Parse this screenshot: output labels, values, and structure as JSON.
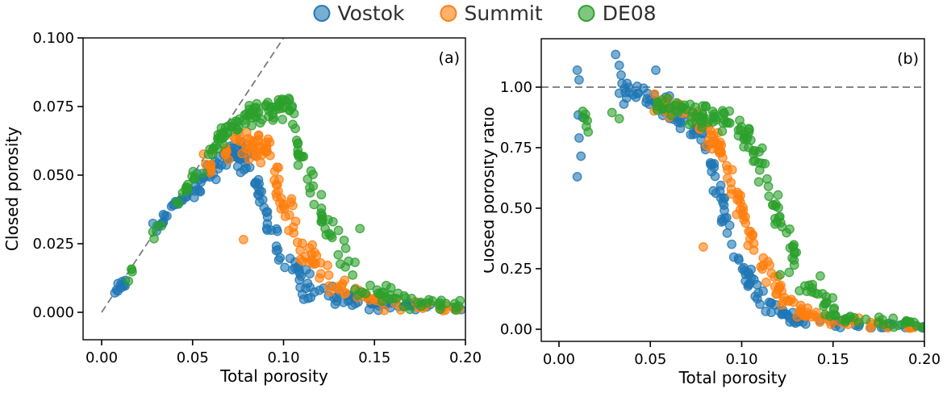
{
  "legend": {
    "items": [
      {
        "label": "Vostok",
        "color": "#1f77b4"
      },
      {
        "label": "Summit",
        "color": "#ff7f0e"
      },
      {
        "label": "DE08",
        "color": "#2ca02c"
      }
    ]
  },
  "chart_data": {
    "type": "scatter",
    "seed": 42,
    "marker": {
      "radius": 5.2,
      "fill_opacity": 0.6,
      "edge_opacity": 0.85,
      "edge_width": 1.3
    },
    "panels": [
      {
        "id": "a",
        "panel_label": "(a)",
        "xlabel": "Total porosity",
        "ylabel": "Closed porosity",
        "xlim": [
          -0.0102,
          0.2
        ],
        "ylim": [
          -0.01,
          0.1
        ],
        "y_floor": 0.0006,
        "xticks": [
          {
            "v": 0,
            "label": "0.00"
          },
          {
            "v": 0.05,
            "label": "0.05"
          },
          {
            "v": 0.1,
            "label": "0.10"
          },
          {
            "v": 0.15,
            "label": "0.15"
          },
          {
            "v": 0.2,
            "label": "0.20"
          }
        ],
        "yticks": [
          {
            "v": 0,
            "label": "0.000"
          },
          {
            "v": 0.025,
            "label": "0.025"
          },
          {
            "v": 0.05,
            "label": "0.050"
          },
          {
            "v": 0.075,
            "label": "0.075"
          },
          {
            "v": 0.1,
            "label": "0.100"
          }
        ],
        "ref_line": {
          "type": "identity",
          "x1": 0,
          "y1": 0,
          "x2": 0.105,
          "y2": 0.105,
          "color": "#757575",
          "dash": "9 5"
        },
        "series": [
          {
            "name": "Vostok",
            "color": "#1f77b4",
            "segments": [
              {
                "n": 10,
                "x": [
                  0.007,
                  0.014
                ],
                "y": [
                  0.0075,
                  0.012
                ],
                "j": 0.0012
              },
              {
                "n": 22,
                "x": [
                  0.028,
                  0.048
                ],
                "y": [
                  0.03,
                  0.044
                ],
                "j": 0.0018
              },
              {
                "n": 28,
                "x": [
                  0.048,
                  0.068
                ],
                "y": [
                  0.044,
                  0.056
                ],
                "j": 0.0022
              },
              {
                "n": 38,
                "x": [
                  0.068,
                  0.084
                ],
                "y": [
                  0.057,
                  0.056
                ],
                "j": 0.0028
              },
              {
                "n": 26,
                "x": [
                  0.084,
                  0.098
                ],
                "y": [
                  0.048,
                  0.022
                ],
                "j": 0.004
              },
              {
                "n": 22,
                "x": [
                  0.098,
                  0.115
                ],
                "y": [
                  0.02,
                  0.0085
                ],
                "j": 0.0028
              },
              {
                "n": 26,
                "x": [
                  0.115,
                  0.15
                ],
                "y": [
                  0.008,
                  0.003
                ],
                "j": 0.0018
              },
              {
                "n": 24,
                "x": [
                  0.15,
                  0.2
                ],
                "y": [
                  0.0028,
                  0.0012
                ],
                "j": 0.001
              }
            ],
            "points": [
              [
                0.009,
                0.0105
              ]
            ]
          },
          {
            "name": "Summit",
            "color": "#ff7f0e",
            "segments": [
              {
                "n": 16,
                "x": [
                  0.056,
                  0.074
                ],
                "y": [
                  0.052,
                  0.061
                ],
                "j": 0.0028
              },
              {
                "n": 36,
                "x": [
                  0.074,
                  0.093
                ],
                "y": [
                  0.062,
                  0.059
                ],
                "j": 0.003
              },
              {
                "n": 26,
                "x": [
                  0.093,
                  0.108
                ],
                "y": [
                  0.05,
                  0.028
                ],
                "j": 0.0045
              },
              {
                "n": 22,
                "x": [
                  0.108,
                  0.126
                ],
                "y": [
                  0.026,
                  0.011
                ],
                "j": 0.0032
              },
              {
                "n": 22,
                "x": [
                  0.126,
                  0.158
                ],
                "y": [
                  0.01,
                  0.0035
                ],
                "j": 0.0018
              },
              {
                "n": 18,
                "x": [
                  0.158,
                  0.198
                ],
                "y": [
                  0.0032,
                  0.0015
                ],
                "j": 0.001
              }
            ],
            "points": [
              [
                0.078,
                0.0265
              ]
            ]
          },
          {
            "name": "DE08",
            "color": "#2ca02c",
            "segments": [
              {
                "n": 4,
                "x": [
                  0.012,
                  0.018
                ],
                "y": [
                  0.012,
                  0.016
                ],
                "j": 0.0012
              },
              {
                "n": 3,
                "x": [
                  0.026,
                  0.031
                ],
                "y": [
                  0.026,
                  0.03
                ],
                "j": 0.0012
              },
              {
                "n": 22,
                "x": [
                  0.04,
                  0.064
                ],
                "y": [
                  0.0395,
                  0.0625
                ],
                "j": 0.0018
              },
              {
                "n": 28,
                "x": [
                  0.064,
                  0.08
                ],
                "y": [
                  0.063,
                  0.0715
                ],
                "j": 0.0022
              },
              {
                "n": 48,
                "x": [
                  0.08,
                  0.106
                ],
                "y": [
                  0.0725,
                  0.0745
                ],
                "j": 0.0032
              },
              {
                "n": 24,
                "x": [
                  0.106,
                  0.121
                ],
                "y": [
                  0.064,
                  0.038
                ],
                "j": 0.005
              },
              {
                "n": 22,
                "x": [
                  0.121,
                  0.14
                ],
                "y": [
                  0.034,
                  0.012
                ],
                "j": 0.004
              },
              {
                "n": 22,
                "x": [
                  0.14,
                  0.17
                ],
                "y": [
                  0.01,
                  0.0042
                ],
                "j": 0.002
              },
              {
                "n": 18,
                "x": [
                  0.17,
                  0.198
                ],
                "y": [
                  0.004,
                  0.002
                ],
                "j": 0.0011
              }
            ],
            "points": [
              [
                0.142,
                0.0305
              ],
              [
                0.033,
                0.0315
              ]
            ]
          }
        ]
      },
      {
        "id": "b",
        "panel_label": "(b)",
        "xlabel": "Total porosity",
        "ylabel": "Closed porosity ratio",
        "xlim": [
          -0.0097,
          0.2
        ],
        "ylim": [
          -0.05,
          1.2
        ],
        "y_floor": 0.0045,
        "xticks": [
          {
            "v": 0,
            "label": "0.00"
          },
          {
            "v": 0.05,
            "label": "0.05"
          },
          {
            "v": 0.1,
            "label": "0.10"
          },
          {
            "v": 0.15,
            "label": "0.15"
          },
          {
            "v": 0.2,
            "label": "0.20"
          }
        ],
        "yticks": [
          {
            "v": 0,
            "label": "0.00"
          },
          {
            "v": 0.25,
            "label": "0.25"
          },
          {
            "v": 0.5,
            "label": "0.50"
          },
          {
            "v": 0.75,
            "label": "0.75"
          },
          {
            "v": 1,
            "label": "1.00"
          }
        ],
        "ref_line": {
          "type": "hline",
          "y": 1.0,
          "color": "#757575",
          "dash": "9 5"
        },
        "series": [
          {
            "name": "Vostok",
            "color": "#1f77b4",
            "segments": [
              {
                "n": 22,
                "x": [
                  0.036,
                  0.058
                ],
                "y": [
                  1.0,
                  0.93
                ],
                "j": 0.022
              },
              {
                "n": 28,
                "x": [
                  0.058,
                  0.08
                ],
                "y": [
                  0.92,
                  0.78
                ],
                "j": 0.03
              },
              {
                "n": 28,
                "x": [
                  0.08,
                  0.096
                ],
                "y": [
                  0.76,
                  0.33
                ],
                "j": 0.048
              },
              {
                "n": 22,
                "x": [
                  0.096,
                  0.112
                ],
                "y": [
                  0.3,
                  0.115
                ],
                "j": 0.032
              },
              {
                "n": 22,
                "x": [
                  0.112,
                  0.132
                ],
                "y": [
                  0.1,
                  0.038
                ],
                "j": 0.018
              },
              {
                "n": 26,
                "x": [
                  0.132,
                  0.2
                ],
                "y": [
                  0.032,
                  0.008
                ],
                "j": 0.011
              }
            ],
            "points": [
              [
                0.01,
                1.07
              ],
              [
                0.011,
                1.03
              ],
              [
                0.0105,
                0.885
              ],
              [
                0.011,
                0.79
              ],
              [
                0.012,
                0.715
              ],
              [
                0.01,
                0.63
              ],
              [
                0.013,
                0.875
              ],
              [
                0.031,
                1.135
              ],
              [
                0.033,
                1.09
              ],
              [
                0.034,
                1.05
              ],
              [
                0.0345,
                1.015
              ],
              [
                0.033,
                0.975
              ],
              [
                0.036,
                0.995
              ],
              [
                0.053,
                1.07
              ],
              [
                0.037,
                0.955
              ],
              [
                0.0355,
                0.93
              ]
            ]
          },
          {
            "name": "Summit",
            "color": "#ff7f0e",
            "segments": [
              {
                "n": 18,
                "x": [
                  0.048,
                  0.074
                ],
                "y": [
                  0.94,
                  0.88
                ],
                "j": 0.022
              },
              {
                "n": 28,
                "x": [
                  0.074,
                  0.09
                ],
                "y": [
                  0.87,
                  0.73
                ],
                "j": 0.032
              },
              {
                "n": 26,
                "x": [
                  0.09,
                  0.106
                ],
                "y": [
                  0.7,
                  0.37
                ],
                "j": 0.048
              },
              {
                "n": 22,
                "x": [
                  0.106,
                  0.122
                ],
                "y": [
                  0.34,
                  0.14
                ],
                "j": 0.035
              },
              {
                "n": 22,
                "x": [
                  0.122,
                  0.142
                ],
                "y": [
                  0.125,
                  0.045
                ],
                "j": 0.018
              },
              {
                "n": 22,
                "x": [
                  0.142,
                  0.196
                ],
                "y": [
                  0.04,
                  0.01
                ],
                "j": 0.011
              }
            ],
            "points": [
              [
                0.079,
                0.34
              ]
            ]
          },
          {
            "name": "DE08",
            "color": "#2ca02c",
            "segments": [
              {
                "n": 20,
                "x": [
                  0.048,
                  0.07
                ],
                "y": [
                  0.925,
                  0.905
                ],
                "j": 0.022
              },
              {
                "n": 40,
                "x": [
                  0.07,
                  0.1
                ],
                "y": [
                  0.9,
                  0.855
                ],
                "j": 0.028
              },
              {
                "n": 26,
                "x": [
                  0.1,
                  0.116
                ],
                "y": [
                  0.83,
                  0.58
                ],
                "j": 0.048
              },
              {
                "n": 26,
                "x": [
                  0.116,
                  0.132
                ],
                "y": [
                  0.54,
                  0.22
                ],
                "j": 0.048
              },
              {
                "n": 22,
                "x": [
                  0.132,
                  0.152
                ],
                "y": [
                  0.19,
                  0.065
                ],
                "j": 0.028
              },
              {
                "n": 26,
                "x": [
                  0.152,
                  0.2
                ],
                "y": [
                  0.055,
                  0.01
                ],
                "j": 0.014
              }
            ],
            "points": [
              [
                0.013,
                0.9
              ],
              [
                0.014,
                0.872
              ],
              [
                0.015,
                0.838
              ],
              [
                0.016,
                0.815
              ],
              [
                0.0145,
                0.888
              ],
              [
                0.0155,
                0.862
              ],
              [
                0.033,
                0.87
              ],
              [
                0.029,
                0.895
              ],
              [
                0.143,
                0.22
              ],
              [
                0.126,
                0.235
              ],
              [
                0.121,
                0.225
              ]
            ]
          }
        ]
      }
    ]
  }
}
